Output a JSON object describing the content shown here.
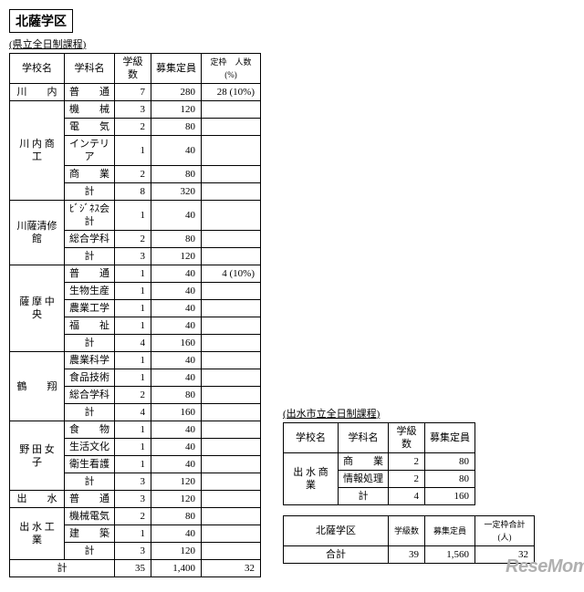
{
  "district_title": "北薩学区",
  "main_table": {
    "subtitle": "(県立全日制課程)",
    "headers": {
      "school": "学校名",
      "dept": "学科名",
      "classes": "学級数",
      "capacity": "募集定員",
      "quota": "定枠　人数(%)"
    },
    "schools": [
      {
        "name": "川　　内",
        "rows": [
          {
            "dept": "普　　通",
            "cls": "7",
            "cap": "280",
            "quota": "28 (10%)"
          }
        ]
      },
      {
        "name": "川 内 商 工",
        "rows": [
          {
            "dept": "機　　械",
            "cls": "3",
            "cap": "120",
            "quota": ""
          },
          {
            "dept": "電　　気",
            "cls": "2",
            "cap": "80",
            "quota": ""
          },
          {
            "dept": "インテリア",
            "cls": "1",
            "cap": "40",
            "quota": ""
          },
          {
            "dept": "商　　業",
            "cls": "2",
            "cap": "80",
            "quota": ""
          },
          {
            "dept": "計",
            "cls": "8",
            "cap": "320",
            "quota": ""
          }
        ]
      },
      {
        "name": "川薩清修館",
        "rows": [
          {
            "dept": "ﾋﾞｼﾞﾈｽ会計",
            "cls": "1",
            "cap": "40",
            "quota": ""
          },
          {
            "dept": "総合学科",
            "cls": "2",
            "cap": "80",
            "quota": ""
          },
          {
            "dept": "計",
            "cls": "3",
            "cap": "120",
            "quota": ""
          }
        ]
      },
      {
        "name": "薩 摩 中 央",
        "rows": [
          {
            "dept": "普　　通",
            "cls": "1",
            "cap": "40",
            "quota": "4 (10%)"
          },
          {
            "dept": "生物生産",
            "cls": "1",
            "cap": "40",
            "quota": ""
          },
          {
            "dept": "農業工学",
            "cls": "1",
            "cap": "40",
            "quota": ""
          },
          {
            "dept": "福　　祉",
            "cls": "1",
            "cap": "40",
            "quota": ""
          },
          {
            "dept": "計",
            "cls": "4",
            "cap": "160",
            "quota": ""
          }
        ]
      },
      {
        "name": "鶴　　翔",
        "rows": [
          {
            "dept": "農業科学",
            "cls": "1",
            "cap": "40",
            "quota": ""
          },
          {
            "dept": "食品技術",
            "cls": "1",
            "cap": "40",
            "quota": ""
          },
          {
            "dept": "総合学科",
            "cls": "2",
            "cap": "80",
            "quota": ""
          },
          {
            "dept": "計",
            "cls": "4",
            "cap": "160",
            "quota": ""
          }
        ]
      },
      {
        "name": "野 田 女 子",
        "rows": [
          {
            "dept": "食　　物",
            "cls": "1",
            "cap": "40",
            "quota": ""
          },
          {
            "dept": "生活文化",
            "cls": "1",
            "cap": "40",
            "quota": ""
          },
          {
            "dept": "衛生看護",
            "cls": "1",
            "cap": "40",
            "quota": ""
          },
          {
            "dept": "計",
            "cls": "3",
            "cap": "120",
            "quota": ""
          }
        ]
      },
      {
        "name": "出　　水",
        "rows": [
          {
            "dept": "普　　通",
            "cls": "3",
            "cap": "120",
            "quota": ""
          }
        ]
      },
      {
        "name": "出 水 工 業",
        "rows": [
          {
            "dept": "機械電気",
            "cls": "2",
            "cap": "80",
            "quota": ""
          },
          {
            "dept": "建　　築",
            "cls": "1",
            "cap": "40",
            "quota": ""
          },
          {
            "dept": "計",
            "cls": "3",
            "cap": "120",
            "quota": ""
          }
        ]
      }
    ],
    "total": {
      "label": "計",
      "cls": "35",
      "cap": "1,400",
      "quota": "32"
    }
  },
  "side_table": {
    "subtitle": "(出水市立全日制課程)",
    "headers": {
      "school": "学校名",
      "dept": "学科名",
      "classes": "学級数",
      "capacity": "募集定員"
    },
    "school": "出 水 商 業",
    "rows": [
      {
        "dept": "商　　業",
        "cls": "2",
        "cap": "80"
      },
      {
        "dept": "情報処理",
        "cls": "2",
        "cap": "80"
      },
      {
        "dept": "計",
        "cls": "4",
        "cap": "160"
      }
    ]
  },
  "summary": {
    "district": "北薩学区",
    "headers": {
      "classes": "学級数",
      "capacity": "募集定員",
      "quota": "一定枠合計(人)"
    },
    "label": "合計",
    "cls": "39",
    "cap": "1,560",
    "quota": "32"
  },
  "logo": "ReseMom"
}
